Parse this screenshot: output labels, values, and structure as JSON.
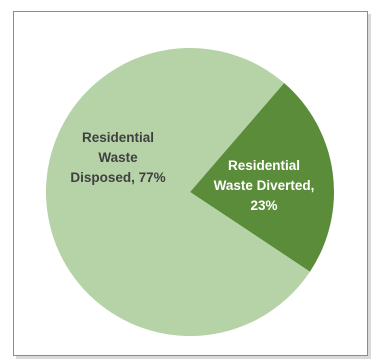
{
  "chart_data": {
    "type": "pie",
    "title": "",
    "slices": [
      {
        "label_lines": [
          "Residential",
          "Waste",
          "Disposed, 77%"
        ],
        "value": 77,
        "color": "#b5d3a6",
        "text_color": "#404040"
      },
      {
        "label_lines": [
          "Residential",
          "Waste Diverted,",
          "23%"
        ],
        "value": 23,
        "color": "#5b8c3a",
        "text_color": "#ffffff"
      }
    ],
    "start_angle_deg": 40.8,
    "legend": "none"
  }
}
